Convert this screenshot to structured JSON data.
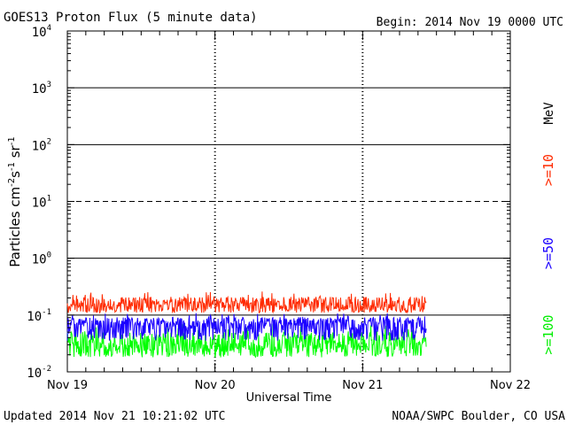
{
  "chart_data": {
    "type": "line",
    "title": "GOES13 Proton Flux (5 minute data)",
    "begin_label": "Begin: 2014 Nov 19 0000 UTC",
    "xlabel": "Universal Time",
    "ylabel": "Particles cm",
    "ylabel_parts": {
      "main": "Particles cm",
      "sup1": "-2",
      "s": "s",
      "sup2": "-1",
      "sr": "sr",
      "sup3": "-1"
    },
    "footer_left": "Updated 2014 Nov 21 10:21:02 UTC",
    "footer_right": "NOAA/SWPC Boulder, CO USA",
    "units_label": "MeV",
    "y_scale": "log",
    "ylim": [
      0.01,
      10000
    ],
    "y_ticks": [
      {
        "base": "10",
        "exp": "-2",
        "value": 0.01
      },
      {
        "base": "10",
        "exp": "-1",
        "value": 0.1
      },
      {
        "base": "10",
        "exp": "0",
        "value": 1
      },
      {
        "base": "10",
        "exp": "1",
        "value": 10
      },
      {
        "base": "10",
        "exp": "2",
        "value": 100
      },
      {
        "base": "10",
        "exp": "3",
        "value": 1000
      },
      {
        "base": "10",
        "exp": "4",
        "value": 10000
      }
    ],
    "xlim": [
      "2014-11-19 00:00",
      "2014-11-22 00:00"
    ],
    "x_ticks": [
      "Nov 19",
      "Nov 20",
      "Nov 21",
      "Nov 22"
    ],
    "thresholds": [
      {
        "value": 0.1,
        "style": "solid"
      },
      {
        "value": 1,
        "style": "solid"
      },
      {
        "value": 10,
        "style": "dashed"
      },
      {
        "value": 100,
        "style": "solid"
      },
      {
        "value": 1000,
        "style": "solid"
      }
    ],
    "grid": "day boundaries (dotted verticals)",
    "legend_placement": "right, rotated",
    "series": [
      {
        "name": ">=10",
        "color": "#ff2a00",
        "time_start": "2014-11-19 00:00",
        "time_end": "2014-11-21 10:20",
        "value_low": 0.11,
        "value_high": 0.26,
        "value_typical": 0.15
      },
      {
        "name": ">=50",
        "color": "#1a00ff",
        "time_start": "2014-11-19 00:00",
        "time_end": "2014-11-21 10:20",
        "value_low": 0.035,
        "value_high": 0.11,
        "value_typical": 0.07
      },
      {
        "name": ">=100",
        "color": "#00ff00",
        "time_start": "2014-11-19 00:00",
        "time_end": "2014-11-21 10:20",
        "value_low": 0.018,
        "value_high": 0.07,
        "value_typical": 0.03
      }
    ]
  }
}
